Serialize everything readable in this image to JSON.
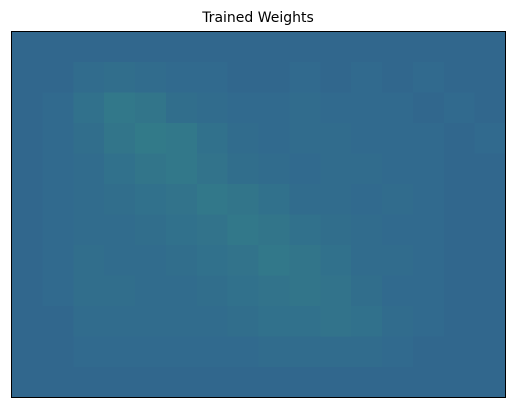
{
  "chart_data": {
    "type": "heatmap",
    "title": "Trained Weights",
    "colormap": [
      "#440154",
      "#31688e",
      "#35b779",
      "#fde725"
    ],
    "values": [
      [
        0.33,
        0.33,
        0.33,
        0.33,
        0.33,
        0.33,
        0.33,
        0.33,
        0.33,
        0.33,
        0.33,
        0.33,
        0.33,
        0.33,
        0.33,
        0.33
      ],
      [
        0.33,
        0.33,
        0.35,
        0.36,
        0.35,
        0.34,
        0.34,
        0.33,
        0.33,
        0.34,
        0.33,
        0.34,
        0.33,
        0.34,
        0.33,
        0.33
      ],
      [
        0.33,
        0.34,
        0.37,
        0.4,
        0.39,
        0.36,
        0.35,
        0.34,
        0.34,
        0.35,
        0.34,
        0.34,
        0.34,
        0.33,
        0.34,
        0.33
      ],
      [
        0.33,
        0.34,
        0.36,
        0.39,
        0.41,
        0.4,
        0.37,
        0.35,
        0.34,
        0.35,
        0.35,
        0.34,
        0.34,
        0.34,
        0.33,
        0.34
      ],
      [
        0.33,
        0.34,
        0.35,
        0.37,
        0.39,
        0.4,
        0.38,
        0.36,
        0.35,
        0.34,
        0.35,
        0.35,
        0.34,
        0.34,
        0.33,
        0.33
      ],
      [
        0.33,
        0.34,
        0.35,
        0.36,
        0.37,
        0.38,
        0.4,
        0.39,
        0.37,
        0.35,
        0.35,
        0.34,
        0.35,
        0.34,
        0.33,
        0.33
      ],
      [
        0.33,
        0.34,
        0.35,
        0.35,
        0.36,
        0.37,
        0.38,
        0.4,
        0.39,
        0.37,
        0.36,
        0.35,
        0.34,
        0.34,
        0.33,
        0.33
      ],
      [
        0.33,
        0.34,
        0.36,
        0.35,
        0.35,
        0.36,
        0.37,
        0.38,
        0.4,
        0.39,
        0.37,
        0.35,
        0.35,
        0.34,
        0.33,
        0.33
      ],
      [
        0.33,
        0.34,
        0.36,
        0.36,
        0.35,
        0.35,
        0.36,
        0.37,
        0.38,
        0.39,
        0.38,
        0.36,
        0.34,
        0.34,
        0.33,
        0.33
      ],
      [
        0.33,
        0.33,
        0.35,
        0.35,
        0.35,
        0.35,
        0.35,
        0.36,
        0.37,
        0.37,
        0.38,
        0.37,
        0.35,
        0.34,
        0.33,
        0.33
      ],
      [
        0.33,
        0.33,
        0.34,
        0.34,
        0.34,
        0.34,
        0.34,
        0.34,
        0.35,
        0.35,
        0.35,
        0.35,
        0.34,
        0.33,
        0.33,
        0.33
      ],
      [
        0.33,
        0.33,
        0.33,
        0.33,
        0.33,
        0.33,
        0.33,
        0.33,
        0.33,
        0.33,
        0.33,
        0.33,
        0.33,
        0.33,
        0.33,
        0.33
      ]
    ]
  }
}
